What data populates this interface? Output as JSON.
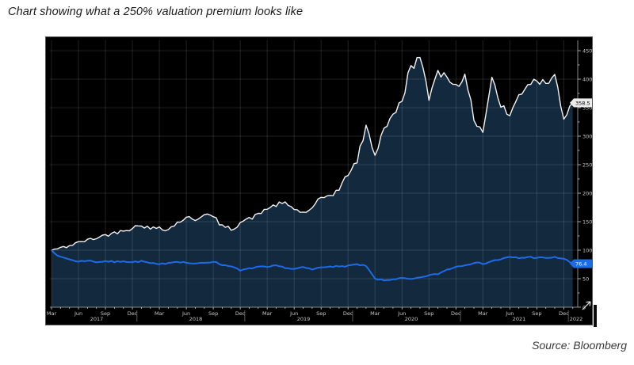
{
  "page": {
    "caption": "Chart showing what a 250% valuation premium looks like",
    "source": "Source: Bloomberg"
  },
  "colors": {
    "panel_bg": "#000000",
    "area_fill": "#13293e",
    "line_white": "#f2f2f2",
    "line_blue": "#1c6ce8",
    "badge_white_bg": "#ececec",
    "badge_white_text": "#000000",
    "badge_blue_bg": "#1c6ce8",
    "badge_blue_text": "#ffffff",
    "axis_line": "#8a8a8a",
    "axis_text": "#c9c9c9",
    "grid": "#ffffff",
    "grid_opacity": 0.13,
    "year_divider": "#6f6f6f"
  },
  "chart_data": {
    "type": "line",
    "title": "",
    "xlabel": "",
    "ylabel": "",
    "x_start": "2017-03",
    "x_end": "2022-01",
    "x_quarter_labels": [
      "Mar",
      "Jun",
      "Sep",
      "Dec"
    ],
    "years": [
      "2017",
      "2018",
      "2019",
      "2020",
      "2021",
      "2022"
    ],
    "ylim": [
      0,
      450
    ],
    "y_tick_step": 50,
    "y_minor_step": 25,
    "grid": true,
    "legend_position": "none",
    "axis_position": "right",
    "series": [
      {
        "name": "upper-indexed-line-white-area",
        "color": "#f2f2f2",
        "fill": "#13293e",
        "last_label": "358.5",
        "values": [
          100,
          104,
          108,
          114,
          118,
          121,
          127,
          131,
          135,
          139,
          144,
          137,
          141,
          136,
          149,
          157,
          153,
          164,
          158,
          143,
          136,
          149,
          156,
          163,
          173,
          178,
          183,
          172,
          166,
          173,
          191,
          197,
          206,
          233,
          255,
          318,
          267,
          315,
          336,
          362,
          425,
          437,
          365,
          418,
          402,
          392,
          405,
          330,
          308,
          404,
          352,
          336,
          372,
          392,
          399,
          394,
          412,
          330,
          358.5
        ]
      },
      {
        "name": "lower-indexed-line-blue",
        "color": "#1c6ce8",
        "fill": "none",
        "last_label": "76.4",
        "values": [
          100,
          88,
          84,
          80,
          82,
          79,
          81,
          79,
          81,
          79,
          81,
          77,
          75,
          78,
          80,
          78,
          76,
          78,
          80,
          74,
          72,
          64,
          68,
          71,
          70,
          73,
          69,
          67,
          70,
          66,
          70,
          72,
          71,
          73,
          75,
          72,
          50,
          47,
          49,
          51,
          49,
          52,
          56,
          58,
          66,
          71,
          74,
          78,
          76,
          81,
          84,
          88,
          86,
          88,
          87,
          86,
          88,
          85,
          76.4
        ]
      }
    ]
  }
}
